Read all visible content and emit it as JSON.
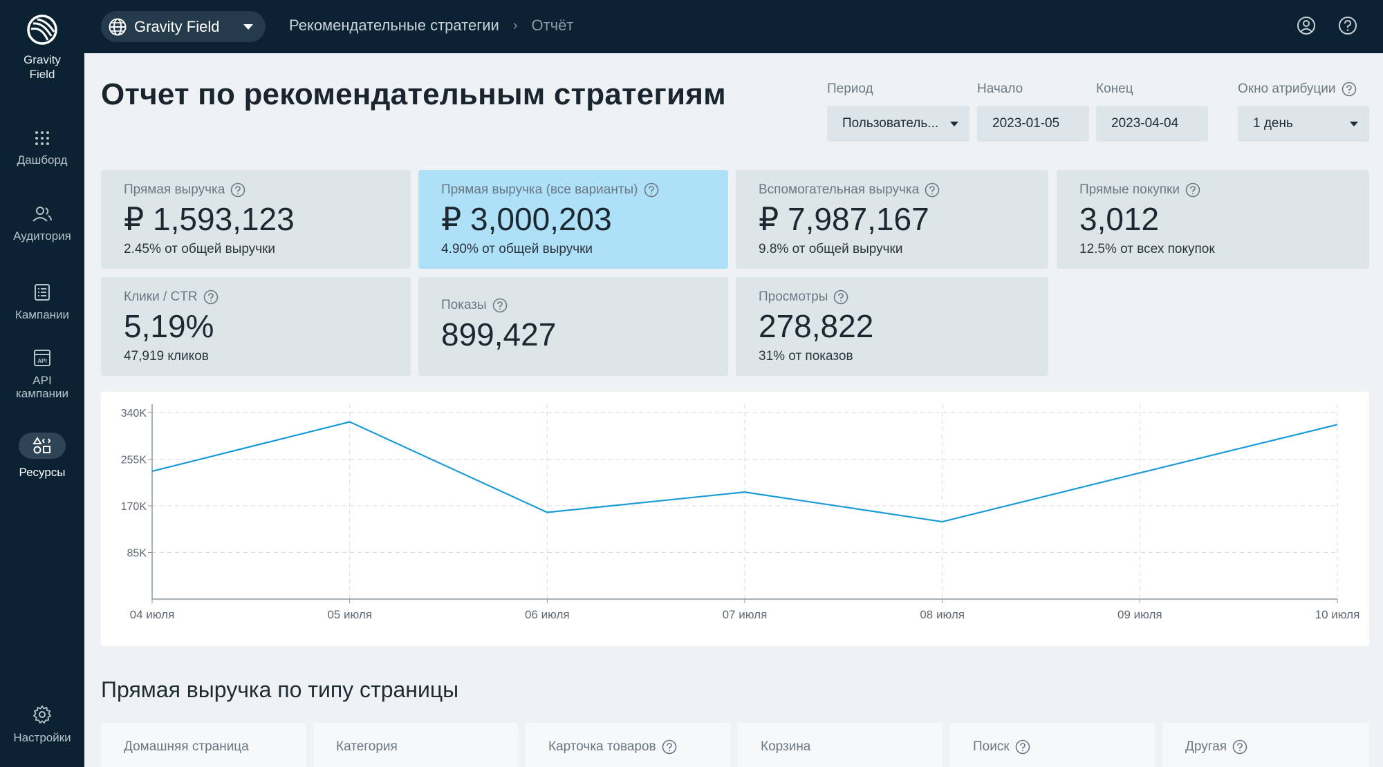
{
  "app": {
    "logo_text": "Gravity Field",
    "colors": {
      "sidebar_bg": "#0b2233",
      "accent_line": "#1a9ad6",
      "highlight_card": "#aee1f7"
    }
  },
  "sidebar": {
    "items": [
      {
        "label": "Дашборд",
        "icon": "grid-dots-icon"
      },
      {
        "label": "Аудитория",
        "icon": "users-icon"
      },
      {
        "label": "Кампании",
        "icon": "list-icon"
      },
      {
        "label": "API кампании",
        "icon": "api-icon"
      },
      {
        "label": "Ресурсы",
        "icon": "shapes-icon",
        "active": true
      },
      {
        "label": "Настройки",
        "icon": "gear-icon"
      }
    ]
  },
  "header": {
    "project_name": "Gravity Field",
    "breadcrumbs": [
      "Рекомендательные стратегии",
      "Отчёт"
    ]
  },
  "page": {
    "title": "Отчет по рекомендательным стратегиям"
  },
  "filters": {
    "period_label": "Период",
    "period_value": "Пользователь...",
    "start_label": "Начало",
    "start_value": "2023-01-05",
    "end_label": "Конец",
    "end_value": "2023-04-04",
    "attribution_label": "Окно атрибуции",
    "attribution_value": "1 день"
  },
  "metrics": [
    {
      "label": "Прямая выручка",
      "value": "₽ 1,593,123",
      "sub": "2.45% от общей выручки"
    },
    {
      "label": "Прямая выручка (все варианты)",
      "value": "₽ 3,000,203",
      "sub": "4.90% от общей выручки"
    },
    {
      "label": "Вспомогательная выручка",
      "value": "₽ 7,987,167",
      "sub": "9.8% от общей выручки"
    },
    {
      "label": "Прямые покупки",
      "value": "3,012",
      "sub": "12.5% от всех покупок"
    },
    {
      "label": "Клики / CTR",
      "value": "5,19%",
      "sub": "47,919 кликов"
    },
    {
      "label": "Показы",
      "value": "899,427",
      "sub": ""
    },
    {
      "label": "Просмотры",
      "value": "278,822",
      "sub": "31% от показов"
    }
  ],
  "chart_data": {
    "type": "line",
    "categories": [
      "04 июля",
      "05 июля",
      "06 июля",
      "07 июля",
      "08 июля",
      "09 июля",
      "10 июля"
    ],
    "values": [
      233000,
      323000,
      158000,
      195000,
      141000,
      230000,
      318000
    ],
    "ylim": [
      0,
      340000
    ],
    "yticks": [
      85000,
      170000,
      255000,
      340000
    ],
    "ytick_labels": [
      "85K",
      "170K",
      "255K",
      "340K"
    ],
    "grid": true,
    "line_color": "#1a9ad6"
  },
  "section": {
    "title": "Прямая выручка по типу страницы",
    "page_types": [
      {
        "label": "Домашняя страница",
        "help": false
      },
      {
        "label": "Категория",
        "help": false
      },
      {
        "label": "Карточка товаров",
        "help": true
      },
      {
        "label": "Корзина",
        "help": false
      },
      {
        "label": "Поиск",
        "help": true
      },
      {
        "label": "Другая",
        "help": true
      }
    ]
  }
}
